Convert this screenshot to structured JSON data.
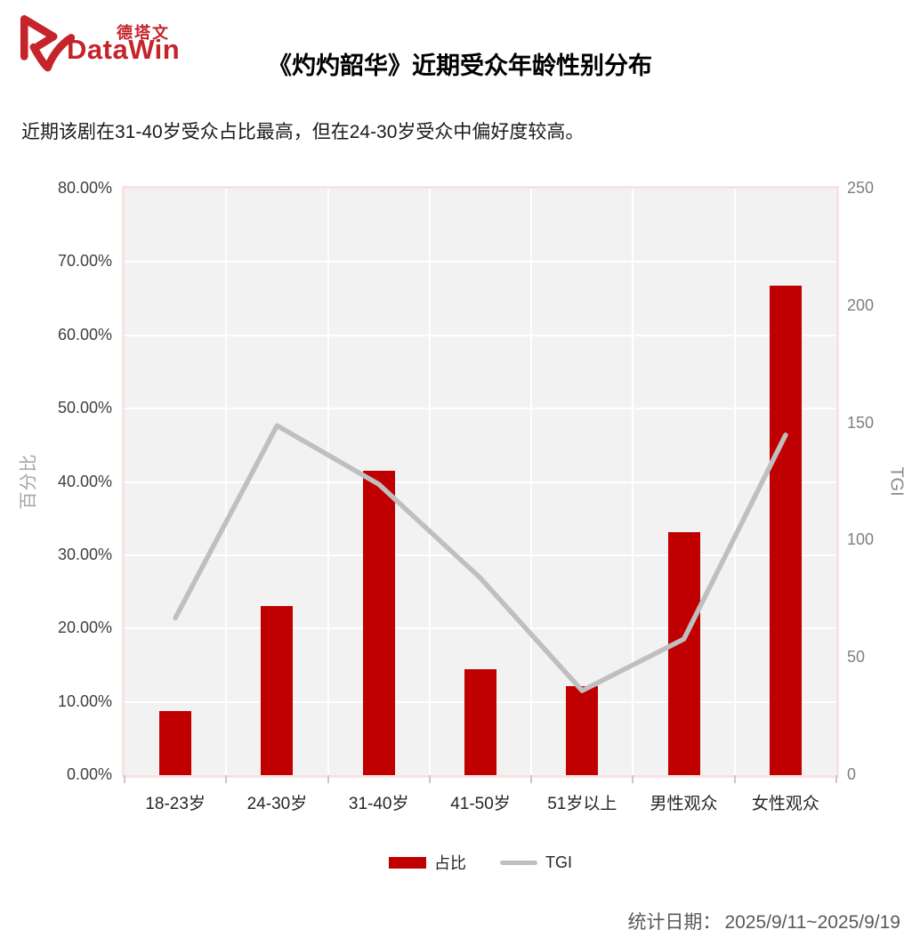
{
  "logo": {
    "cn": "德塔文",
    "en": "DataWin",
    "color": "#C5242B"
  },
  "header": {
    "title": "《灼灼韶华》近期受众年龄性别分布"
  },
  "subtitle": "近期该剧在31-40岁受众占比最高，但在24-30岁受众中偏好度较高。",
  "footer": {
    "label": "统计日期：",
    "value": "2025/9/11~2025/9/19"
  },
  "chart_data": {
    "type": "bar",
    "subtype": "bar+line combo, dual axis",
    "title": "《灼灼韶华》近期受众年龄性别分布",
    "categories": [
      "18-23岁",
      "24-30岁",
      "31-40岁",
      "41-50岁",
      "51岁以上",
      "男性观众",
      "女性观众"
    ],
    "series": [
      {
        "name": "占比",
        "type": "bar",
        "axis": "left",
        "unit": "%",
        "color": "#C00000",
        "values": [
          8.8,
          23.1,
          41.5,
          14.4,
          12.2,
          33.1,
          66.8
        ]
      },
      {
        "name": "TGI",
        "type": "line",
        "axis": "right",
        "color": "#BFBFBF",
        "values": [
          67,
          149,
          124,
          84,
          36,
          58,
          145
        ]
      }
    ],
    "left_axis": {
      "title": "百分比",
      "min": 0,
      "max": 80,
      "tick_labels": [
        "80.00%",
        "70.00%",
        "60.00%",
        "50.00%",
        "40.00%",
        "30.00%",
        "20.00%",
        "10.00%",
        "0.00%"
      ]
    },
    "right_axis": {
      "title": "TGI",
      "min": 0,
      "max": 250,
      "tick_labels": [
        "250",
        "200",
        "150",
        "100",
        "50",
        "0"
      ]
    },
    "legend": [
      "占比",
      "TGI"
    ],
    "legend_position": "bottom center",
    "grid": "on",
    "plot_bg": "#F2F2F2",
    "grid_color": "#FFFFFF",
    "plot_border_color": "#F9E3E2"
  }
}
